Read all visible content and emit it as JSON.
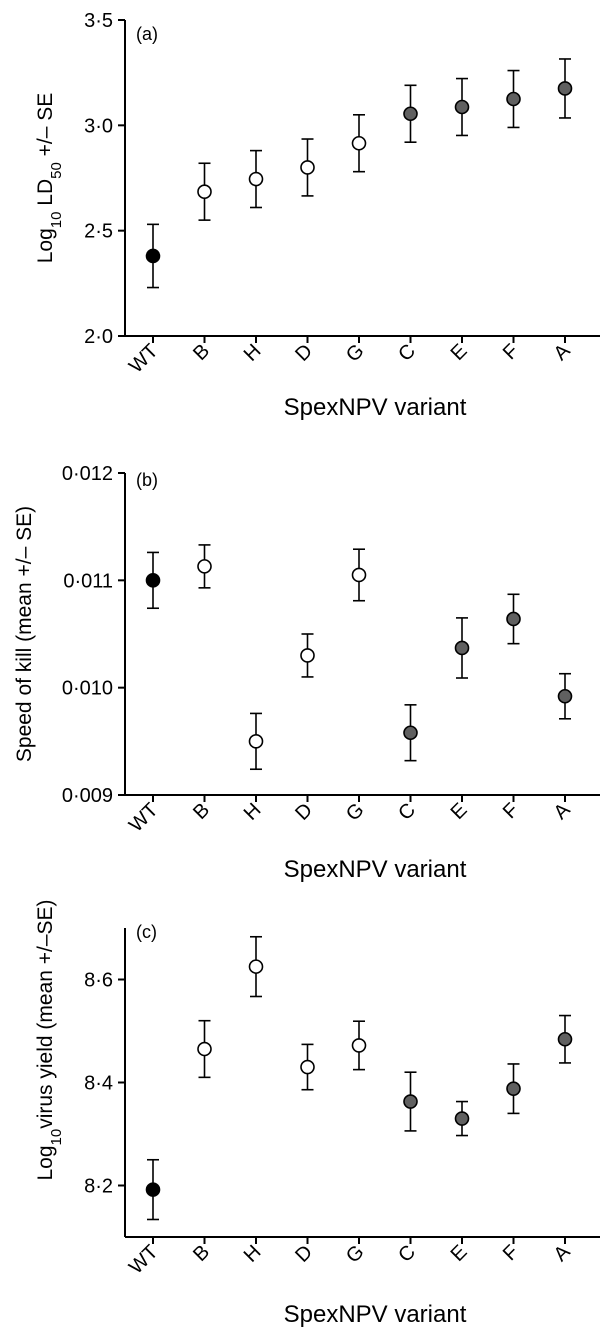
{
  "colors": {
    "open": "#ffffff",
    "grey": "#606060",
    "black": "#000000"
  },
  "chart_data": [
    {
      "type": "scatter",
      "panel": "(a)",
      "xlabel": "SpexNPV variant",
      "ylabel_main": "Log",
      "ylabel_sub": "10",
      "ylabel_mid": " LD",
      "ylabel_sub2": "50",
      "ylabel_tail": " +/– SE",
      "categories": [
        "WT",
        "B",
        "H",
        "D",
        "G",
        "C",
        "E",
        "F",
        "A"
      ],
      "ylim": [
        2.0,
        3.5
      ],
      "yticks": [
        2.0,
        2.5,
        3.0,
        3.5
      ],
      "ytick_labels": [
        "2·0",
        "2·5",
        "3·0",
        "3·5"
      ],
      "values": [
        2.38,
        2.685,
        2.745,
        2.8,
        2.915,
        3.055,
        3.087,
        3.125,
        3.175
      ],
      "errors": [
        0.15,
        0.135,
        0.135,
        0.135,
        0.135,
        0.135,
        0.135,
        0.135,
        0.14
      ],
      "marker_fill": [
        "black",
        "open",
        "open",
        "open",
        "open",
        "grey",
        "grey",
        "grey",
        "grey"
      ]
    },
    {
      "type": "scatter",
      "panel": "(b)",
      "xlabel": "SpexNPV variant",
      "ylabel": "Speed of kill (mean +/– SE)",
      "categories": [
        "WT",
        "B",
        "H",
        "D",
        "G",
        "C",
        "E",
        "F",
        "A"
      ],
      "ylim": [
        0.009,
        0.012
      ],
      "yticks": [
        0.009,
        0.01,
        0.011,
        0.012
      ],
      "ytick_labels": [
        "0·009",
        "0·010",
        "0·011",
        "0·012"
      ],
      "values": [
        0.011,
        0.01113,
        0.0095,
        0.0103,
        0.01105,
        0.00958,
        0.01037,
        0.01064,
        0.00992
      ],
      "errors": [
        0.00026,
        0.0002,
        0.00026,
        0.0002,
        0.00024,
        0.00026,
        0.00028,
        0.00023,
        0.00021
      ],
      "marker_fill": [
        "black",
        "open",
        "open",
        "open",
        "open",
        "grey",
        "grey",
        "grey",
        "grey"
      ]
    },
    {
      "type": "scatter",
      "panel": "(c)",
      "xlabel": "SpexNPV variant",
      "ylabel_main": "Log",
      "ylabel_sub": "10",
      "ylabel_tail": "virus yield (mean +/–SE)",
      "categories": [
        "WT",
        "B",
        "H",
        "D",
        "G",
        "C",
        "E",
        "F",
        "A"
      ],
      "ylim": [
        8.1,
        8.7
      ],
      "yticks": [
        8.2,
        8.4,
        8.6
      ],
      "ytick_labels": [
        "8·2",
        "8·4",
        "8·6"
      ],
      "values": [
        8.192,
        8.465,
        8.625,
        8.43,
        8.472,
        8.363,
        8.33,
        8.388,
        8.484
      ],
      "errors": [
        0.058,
        0.055,
        0.058,
        0.044,
        0.047,
        0.057,
        0.033,
        0.048,
        0.046
      ],
      "marker_fill": [
        "black",
        "open",
        "open",
        "open",
        "open",
        "grey",
        "grey",
        "grey",
        "grey"
      ]
    }
  ]
}
